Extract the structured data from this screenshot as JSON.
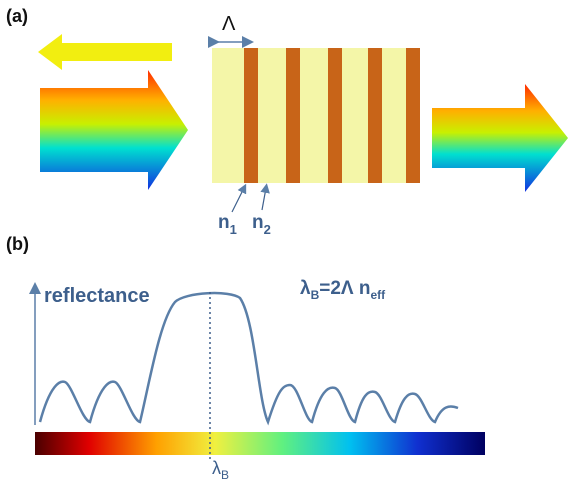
{
  "panel_a": {
    "label": "(a)",
    "period": "Λ",
    "n1": {
      "base": "n",
      "sub": "1"
    },
    "n2": {
      "base": "n",
      "sub": "2"
    }
  },
  "panel_b": {
    "label": "(b)",
    "y_label": "reflectance",
    "equation": {
      "lambda": "λ",
      "lambda_sub": "B",
      "middle": "=2Λ n",
      "n_sub": "eff"
    },
    "marker": {
      "base": "λ",
      "sub": "B"
    }
  }
}
